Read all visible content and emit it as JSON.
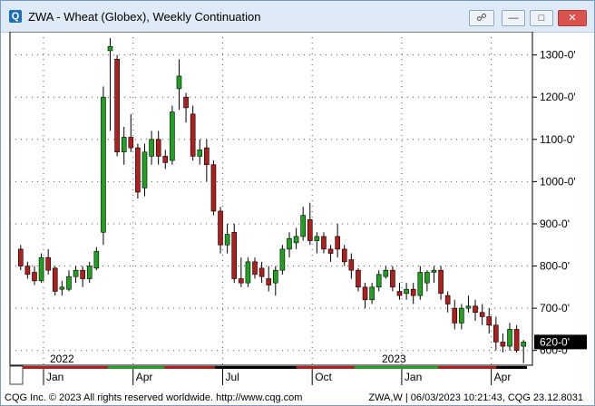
{
  "window": {
    "title": "ZWA - Wheat (Globex), Weekly Continuation",
    "icon": "chart-app-icon",
    "buttons": [
      "link-icon",
      "minimize-icon",
      "maximize-icon",
      "close-icon"
    ]
  },
  "footer": {
    "copyright": "CQG Inc. © 2023 All rights reserved worldwide. http://www.cqg.com",
    "status": "ZWA,W | 06/03/2023 10:21:43, CQG 23.12.8031"
  },
  "colors": {
    "up": "#21a121",
    "down": "#b01e1e",
    "wick": "#000000",
    "grid": "#555555"
  },
  "chart_data": {
    "type": "candlestick",
    "title": "ZWA - Wheat (Globex), Weekly Continuation",
    "ylim": [
      565,
      1355
    ],
    "y_ticks": [
      600,
      700,
      800,
      900,
      1000,
      1100,
      1200,
      1300
    ],
    "y_tick_labels": [
      "600-0'",
      "700-0'",
      "800-0'",
      "900-0'",
      "1000-0'",
      "1100-0'",
      "1200-0'",
      "1300-0'"
    ],
    "last_price_label": "620-0'",
    "last_price": 620,
    "x_month_labels": [
      "Jan",
      "Apr",
      "Jul",
      "Oct",
      "Jan",
      "Apr"
    ],
    "x_year_labels": [
      "2022",
      "2023"
    ],
    "grid": true,
    "candles": [
      [
        840,
        850,
        790,
        800
      ],
      [
        800,
        810,
        770,
        780
      ],
      [
        785,
        800,
        755,
        765
      ],
      [
        765,
        830,
        760,
        820
      ],
      [
        820,
        840,
        780,
        790
      ],
      [
        795,
        800,
        730,
        740
      ],
      [
        745,
        765,
        730,
        750
      ],
      [
        745,
        790,
        740,
        775
      ],
      [
        775,
        800,
        760,
        790
      ],
      [
        790,
        800,
        750,
        770
      ],
      [
        770,
        810,
        760,
        800
      ],
      [
        795,
        845,
        790,
        835
      ],
      [
        880,
        1225,
        850,
        1200
      ],
      [
        1310,
        1340,
        1120,
        1320
      ],
      [
        1290,
        1300,
        1060,
        1070
      ],
      [
        1070,
        1130,
        1040,
        1105
      ],
      [
        1105,
        1160,
        1070,
        1080
      ],
      [
        1080,
        1090,
        960,
        975
      ],
      [
        985,
        1090,
        965,
        1070
      ],
      [
        1060,
        1120,
        1040,
        1100
      ],
      [
        1100,
        1120,
        1040,
        1060
      ],
      [
        1060,
        1075,
        1030,
        1045
      ],
      [
        1050,
        1180,
        1040,
        1165
      ],
      [
        1220,
        1290,
        1170,
        1250
      ],
      [
        1200,
        1210,
        1140,
        1175
      ],
      [
        1160,
        1180,
        1050,
        1060
      ],
      [
        1060,
        1100,
        1040,
        1075
      ],
      [
        1080,
        1100,
        1000,
        1040
      ],
      [
        1040,
        1050,
        920,
        930
      ],
      [
        930,
        940,
        830,
        850
      ],
      [
        850,
        900,
        830,
        875
      ],
      [
        880,
        900,
        760,
        770
      ],
      [
        770,
        820,
        750,
        760
      ],
      [
        760,
        820,
        750,
        810
      ],
      [
        810,
        820,
        770,
        780
      ],
      [
        795,
        810,
        760,
        775
      ],
      [
        770,
        800,
        740,
        755
      ],
      [
        760,
        800,
        730,
        790
      ],
      [
        790,
        850,
        780,
        840
      ],
      [
        840,
        880,
        820,
        865
      ],
      [
        855,
        890,
        840,
        870
      ],
      [
        870,
        940,
        860,
        920
      ],
      [
        910,
        950,
        850,
        860
      ],
      [
        860,
        880,
        830,
        870
      ],
      [
        870,
        880,
        830,
        840
      ],
      [
        840,
        850,
        810,
        830
      ],
      [
        870,
        900,
        820,
        840
      ],
      [
        840,
        850,
        800,
        810
      ],
      [
        815,
        830,
        770,
        790
      ],
      [
        790,
        795,
        740,
        750
      ],
      [
        750,
        760,
        700,
        720
      ],
      [
        720,
        760,
        710,
        750
      ],
      [
        750,
        790,
        740,
        780
      ],
      [
        775,
        800,
        770,
        790
      ],
      [
        790,
        800,
        740,
        750
      ],
      [
        740,
        760,
        720,
        730
      ],
      [
        735,
        760,
        720,
        745
      ],
      [
        745,
        760,
        710,
        730
      ],
      [
        730,
        800,
        720,
        785
      ],
      [
        760,
        790,
        740,
        785
      ],
      [
        785,
        800,
        760,
        790
      ],
      [
        790,
        800,
        720,
        735
      ],
      [
        730,
        740,
        690,
        710
      ],
      [
        700,
        720,
        650,
        665
      ],
      [
        665,
        710,
        650,
        700
      ],
      [
        700,
        730,
        690,
        705
      ],
      [
        705,
        720,
        670,
        690
      ],
      [
        690,
        710,
        660,
        680
      ],
      [
        680,
        700,
        640,
        660
      ],
      [
        660,
        680,
        600,
        620
      ],
      [
        620,
        640,
        595,
        610
      ],
      [
        610,
        665,
        600,
        650
      ],
      [
        650,
        660,
        595,
        600
      ],
      [
        610,
        625,
        570,
        620
      ]
    ]
  }
}
